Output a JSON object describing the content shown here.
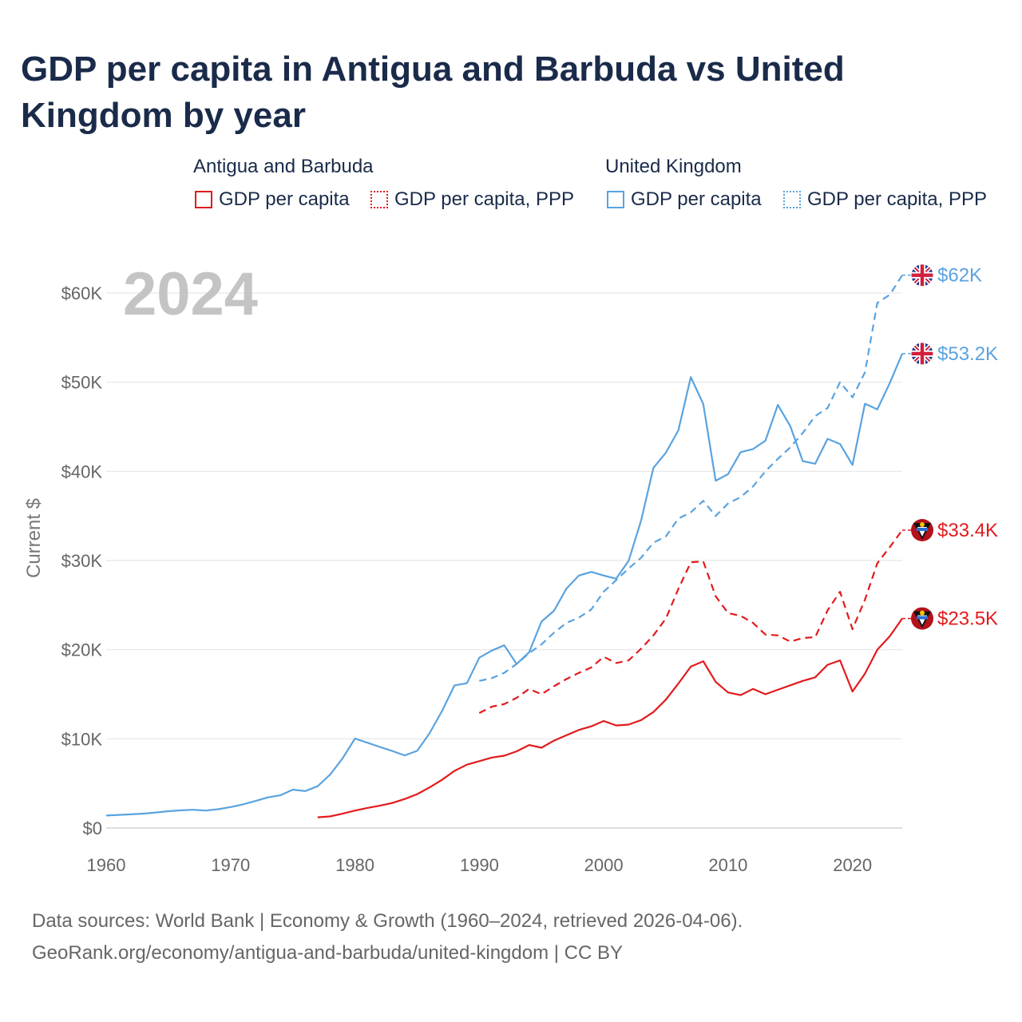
{
  "title": "GDP per capita in Antigua and Barbuda vs United Kingdom by year",
  "legend": {
    "groups": [
      {
        "name": "Antigua and Barbuda",
        "items": [
          "GDP per capita",
          "GDP per capita, PPP"
        ]
      },
      {
        "name": "United Kingdom",
        "items": [
          "GDP per capita",
          "GDP per capita, PPP"
        ]
      }
    ]
  },
  "year_label": "2024",
  "source_line1": "Data sources: World Bank | Economy & Growth (1960–2024, retrieved 2026-04-06).",
  "source_line2": "GeoRank.org/economy/antigua-and-barbuda/united-kingdom | CC BY",
  "colors": {
    "antigua": "#e31a1c",
    "uk": "#5aa3e0",
    "grid": "#e6e6e6",
    "year": "#c4c4c4"
  },
  "chart_data": {
    "type": "line",
    "title": "GDP per capita in Antigua and Barbuda vs United Kingdom by year",
    "xlabel": "",
    "ylabel": "Current $",
    "xlim": [
      1960,
      2024
    ],
    "ylim": [
      0,
      60000
    ],
    "x_ticks": [
      1960,
      1970,
      1980,
      1990,
      2000,
      2010,
      2020
    ],
    "x_tick_labels": [
      "1960",
      "1970",
      "1980",
      "1990",
      "2000",
      "2010",
      "2020"
    ],
    "y_ticks": [
      0,
      10000,
      20000,
      30000,
      40000,
      50000,
      60000
    ],
    "y_tick_labels": [
      "$0",
      "$10K",
      "$20K",
      "$30K",
      "$40K",
      "$50K",
      "$60K"
    ],
    "series": [
      {
        "name": "United Kingdom GDP per capita",
        "country": "uk",
        "style": "solid",
        "end_label": "$53.2K",
        "start_year": 1960,
        "values": [
          1400,
          1470,
          1530,
          1610,
          1740,
          1880,
          1980,
          2040,
          1950,
          2100,
          2350,
          2650,
          3030,
          3430,
          3660,
          4300,
          4140,
          4680,
          5980,
          7800,
          10030,
          9560,
          9090,
          8630,
          8140,
          8650,
          10620,
          13120,
          15990,
          16240,
          19100,
          19900,
          20490,
          18390,
          19710,
          23150,
          24360,
          26840,
          28320,
          28720,
          28320,
          27960,
          29960,
          34470,
          40400,
          42100,
          44600,
          50570,
          47550,
          38950,
          39690,
          42150,
          42500,
          43430,
          47450,
          45070,
          41150,
          40850,
          43650,
          43070,
          40720,
          47590,
          46950,
          49910,
          53200
        ]
      },
      {
        "name": "United Kingdom GDP per capita, PPP",
        "country": "uk",
        "style": "dashed",
        "end_label": "$62K",
        "start_year": 1990,
        "values": [
          16500,
          16800,
          17400,
          18400,
          19600,
          20600,
          21900,
          23000,
          23600,
          24500,
          26500,
          27800,
          29100,
          30300,
          32000,
          32700,
          34700,
          35400,
          36700,
          35000,
          36400,
          37100,
          38300,
          40000,
          41400,
          42700,
          44300,
          46200,
          47100,
          50000,
          48300,
          51100,
          58900,
          59800,
          62000
        ]
      },
      {
        "name": "Antigua and Barbuda GDP per capita",
        "country": "antigua",
        "style": "solid",
        "end_label": "$23.5K",
        "start_year": 1977,
        "values": [
          1200,
          1300,
          1600,
          1950,
          2250,
          2500,
          2800,
          3250,
          3800,
          4550,
          5400,
          6400,
          7100,
          7500,
          7900,
          8100,
          8600,
          9300,
          9000,
          9800,
          10400,
          11000,
          11400,
          12000,
          11500,
          11600,
          12100,
          13000,
          14400,
          16200,
          18100,
          18700,
          16400,
          15200,
          14900,
          15600,
          15000,
          15500,
          16000,
          16500,
          16900,
          18300,
          18800,
          15300,
          17300,
          20000,
          21500,
          23500
        ]
      },
      {
        "name": "Antigua and Barbuda GDP per capita, PPP",
        "country": "antigua",
        "style": "dashed",
        "end_label": "$33.4K",
        "start_year": 1990,
        "values": [
          12900,
          13600,
          13900,
          14600,
          15600,
          15000,
          15900,
          16700,
          17400,
          18000,
          19200,
          18500,
          18800,
          20100,
          21600,
          23500,
          26800,
          29800,
          29900,
          26000,
          24100,
          23800,
          23000,
          21700,
          21600,
          20900,
          21300,
          21400,
          24400,
          26500,
          22300,
          25600,
          29700,
          31500,
          33400
        ]
      }
    ]
  }
}
